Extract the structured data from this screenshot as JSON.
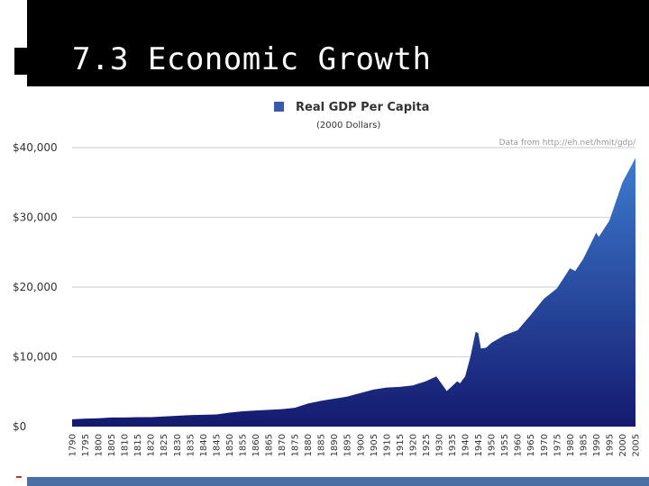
{
  "slide": {
    "title": "7.3 Economic Growth",
    "colors": {
      "title_bar": "#000000",
      "title_text": "#ffffff",
      "bottom_bar": "#4a6fa5"
    }
  },
  "chart_data": {
    "type": "area",
    "title": "Real GDP Per Capita",
    "subtitle": "(2000 Dollars)",
    "source_note": "Data from http://eh.net/hmit/gdp/",
    "legend": {
      "label": "Real GDP Per Capita",
      "position": "top-center"
    },
    "xlabel": "",
    "ylabel": "",
    "ylim": [
      0,
      40000
    ],
    "xlim": [
      1790,
      2005
    ],
    "grid": true,
    "y_ticks": [
      0,
      10000,
      20000,
      30000,
      40000
    ],
    "y_tick_labels": [
      "$0",
      "$10,000",
      "$20,000",
      "$30,000",
      "$40,000"
    ],
    "x_ticks": [
      1790,
      1795,
      1800,
      1805,
      1810,
      1815,
      1820,
      1825,
      1830,
      1835,
      1840,
      1845,
      1850,
      1855,
      1860,
      1865,
      1870,
      1875,
      1880,
      1885,
      1890,
      1895,
      1900,
      1905,
      1910,
      1915,
      1920,
      1925,
      1930,
      1935,
      1940,
      1945,
      1950,
      1955,
      1960,
      1965,
      1970,
      1975,
      1980,
      1985,
      1990,
      1995,
      2000,
      2005
    ],
    "colors": {
      "fill_top": "#3d7bd0",
      "fill_bottom": "#141a6e",
      "legend_swatch": "#3b5ba8",
      "grid": "#d4d4d4"
    },
    "x": [
      1790,
      1795,
      1800,
      1805,
      1810,
      1815,
      1820,
      1825,
      1830,
      1835,
      1840,
      1845,
      1850,
      1855,
      1860,
      1865,
      1870,
      1875,
      1880,
      1885,
      1890,
      1895,
      1900,
      1905,
      1910,
      1915,
      1920,
      1925,
      1929,
      1933,
      1937,
      1938,
      1940,
      1942,
      1944,
      1945,
      1946,
      1948,
      1950,
      1955,
      1960,
      1965,
      1970,
      1975,
      1980,
      1982,
      1985,
      1990,
      1991,
      1995,
      2000,
      2005
    ],
    "values": [
      1050,
      1150,
      1200,
      1300,
      1300,
      1350,
      1350,
      1450,
      1550,
      1650,
      1700,
      1750,
      2000,
      2200,
      2300,
      2400,
      2500,
      2700,
      3300,
      3700,
      4000,
      4300,
      4800,
      5300,
      5600,
      5700,
      5900,
      6500,
      7200,
      5100,
      6500,
      6200,
      7200,
      10000,
      13600,
      13400,
      11200,
      11300,
      12000,
      13100,
      13800,
      16000,
      18300,
      19800,
      22700,
      22300,
      24000,
      27800,
      27200,
      29500,
      35000,
      38500
    ]
  }
}
